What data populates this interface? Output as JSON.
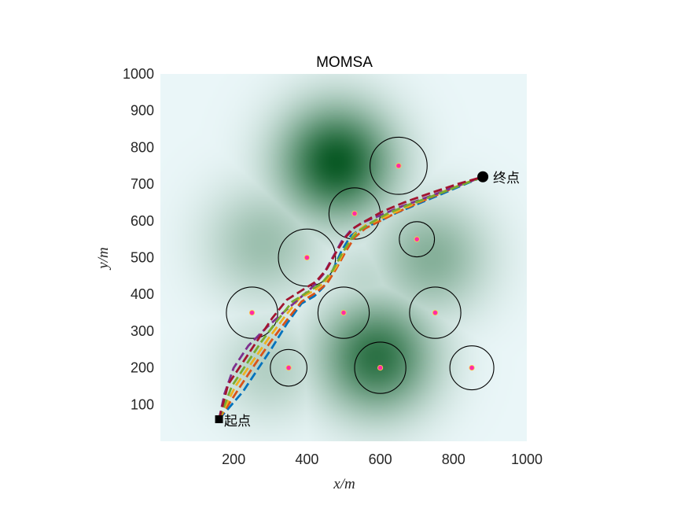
{
  "chart_data": {
    "type": "scatter",
    "title": "MOMSA",
    "xlabel": "x/m",
    "ylabel": "y/m",
    "xlim": [
      0,
      1000
    ],
    "ylim": [
      0,
      1000
    ],
    "xticks": [
      200,
      400,
      600,
      800,
      1000
    ],
    "yticks": [
      100,
      200,
      300,
      400,
      500,
      600,
      700,
      800,
      900,
      1000
    ],
    "grid": false,
    "colors": {
      "background": "#eaf6f8",
      "terrain_peak": "#0b5a26",
      "circle_stroke": "#000000",
      "threat_center": "#ff2aa8",
      "path_colors": [
        "#0072bd",
        "#d95319",
        "#edb120",
        "#7e2f8e",
        "#77ac30",
        "#a2142f"
      ]
    },
    "start": {
      "x": 160,
      "y": 60,
      "label": "起点",
      "marker": "square"
    },
    "goal": {
      "x": 880,
      "y": 720,
      "label": "终点",
      "marker": "circle"
    },
    "threats": [
      {
        "x": 650,
        "y": 750,
        "r": 78
      },
      {
        "x": 530,
        "y": 620,
        "r": 70
      },
      {
        "x": 700,
        "y": 550,
        "r": 48
      },
      {
        "x": 400,
        "y": 500,
        "r": 78
      },
      {
        "x": 250,
        "y": 350,
        "r": 70
      },
      {
        "x": 500,
        "y": 350,
        "r": 70
      },
      {
        "x": 750,
        "y": 350,
        "r": 70
      },
      {
        "x": 350,
        "y": 200,
        "r": 50
      },
      {
        "x": 600,
        "y": 200,
        "r": 70
      },
      {
        "x": 850,
        "y": 200,
        "r": 60
      }
    ],
    "terrain_peaks": [
      {
        "x": 480,
        "y": 760,
        "h": 1.0,
        "s": 110
      },
      {
        "x": 590,
        "y": 230,
        "h": 0.85,
        "s": 110
      },
      {
        "x": 280,
        "y": 540,
        "h": 0.35,
        "s": 110
      },
      {
        "x": 740,
        "y": 500,
        "h": 0.45,
        "s": 110
      },
      {
        "x": 300,
        "y": 200,
        "h": 0.25,
        "s": 100
      },
      {
        "x": 560,
        "y": 430,
        "h": 0.2,
        "s": 90
      }
    ],
    "series": [
      {
        "x": [
          160,
          225,
          265,
          305,
          345,
          385,
          420,
          445,
          470,
          495,
          520,
          550,
          590,
          640,
          700,
          760,
          820,
          880
        ],
        "y": [
          60,
          135,
          195,
          255,
          320,
          375,
          395,
          420,
          465,
          520,
          560,
          580,
          595,
          620,
          645,
          670,
          695,
          720
        ]
      },
      {
        "x": [
          160,
          215,
          255,
          300,
          345,
          385,
          425,
          455,
          480,
          505,
          530,
          560,
          600,
          650,
          705,
          765,
          825,
          880
        ],
        "y": [
          60,
          145,
          205,
          270,
          330,
          380,
          405,
          430,
          470,
          515,
          555,
          580,
          600,
          625,
          650,
          675,
          700,
          720
        ]
      },
      {
        "x": [
          160,
          205,
          250,
          295,
          340,
          380,
          420,
          450,
          480,
          505,
          530,
          560,
          600,
          650,
          705,
          765,
          825,
          880
        ],
        "y": [
          60,
          150,
          215,
          280,
          340,
          390,
          410,
          435,
          475,
          525,
          565,
          588,
          605,
          628,
          652,
          677,
          700,
          720
        ]
      },
      {
        "x": [
          160,
          175,
          200,
          240,
          290,
          335,
          375,
          415,
          445,
          470,
          495,
          520,
          550,
          600,
          660,
          730,
          810,
          880
        ],
        "y": [
          60,
          130,
          200,
          260,
          310,
          350,
          385,
          420,
          455,
          500,
          545,
          575,
          595,
          615,
          640,
          665,
          695,
          720
        ]
      },
      {
        "x": [
          160,
          195,
          235,
          275,
          320,
          360,
          400,
          440,
          470,
          495,
          520,
          545,
          575,
          620,
          680,
          750,
          820,
          880
        ],
        "y": [
          60,
          150,
          210,
          270,
          330,
          380,
          405,
          430,
          465,
          510,
          550,
          575,
          595,
          620,
          645,
          670,
          697,
          720
        ]
      },
      {
        "x": [
          160,
          185,
          225,
          265,
          305,
          345,
          385,
          425,
          455,
          480,
          505,
          530,
          560,
          605,
          665,
          735,
          810,
          880
        ],
        "y": [
          60,
          155,
          215,
          275,
          335,
          385,
          410,
          435,
          470,
          515,
          555,
          582,
          600,
          625,
          650,
          675,
          700,
          720
        ]
      }
    ]
  }
}
